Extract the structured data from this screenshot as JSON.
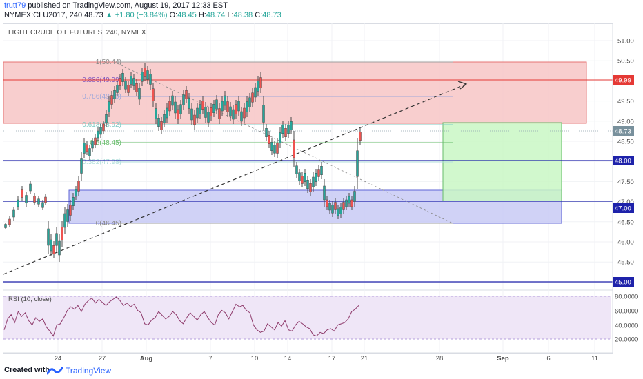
{
  "header": {
    "user": "trutt79",
    "published_text": " published on TradingView.com, August 19, 2017 12:33 EST",
    "symbol": "NYMEX:CLU2017, 240",
    "last": "48.73",
    "change": "▲ +1.80 (+3.84%)",
    "o_label": "O:",
    "o": "48.45",
    "h_label": "H:",
    "h": "48.74",
    "l_label": "L:",
    "l": "48.38",
    "c_label": "C:",
    "c": "48.73"
  },
  "chart": {
    "title": "LIGHT CRUDE OIL FUTURES, 240, NYMEX",
    "rsi_label": "RSI (10, close)",
    "price_ticks": [
      "51.00",
      "50.50",
      "50.00",
      "49.50",
      "49.00",
      "48.50",
      "48.00",
      "47.50",
      "47.00",
      "46.50",
      "46.00",
      "45.50",
      "45.00"
    ],
    "rsi_ticks": [
      "80.0000",
      "60.0000",
      "40.0000",
      "20.0000"
    ],
    "date_ticks": [
      "24",
      "27",
      "Aug",
      "7",
      "10",
      "14",
      "17",
      "21",
      "28",
      "Sep",
      "6",
      "11"
    ],
    "level_labels": [
      {
        "text": "49.99",
        "color": "#e53935"
      },
      {
        "text": "48.73",
        "color": "#78909c"
      },
      {
        "text": "48.00",
        "color": "#1e22aa"
      },
      {
        "text": "47.00",
        "color": "#1e22aa"
      },
      {
        "text": "45.00",
        "color": "#1e22aa"
      }
    ],
    "fib_labels": [
      "1(50.44)",
      "0.886(49.99)",
      "0.786(49.59)",
      "0.618(48.92)",
      "0.5(48.45)",
      "0.382(47.98)",
      "0(46.45)"
    ],
    "colors": {
      "up": "#26a69a",
      "down": "#ef5350",
      "candle_body": "#4a4a4a",
      "support": "#1e22aa",
      "resist": "#e53935",
      "red_zone": "#f4b6b6",
      "blue_zone": "#c5c8f7",
      "green_zone": "#c9f7c4",
      "rsi_line": "#8e3a6b",
      "rsi_bg": "#efe6f7"
    }
  },
  "footer": {
    "created": "Created with",
    "brand": "TradingView"
  }
}
